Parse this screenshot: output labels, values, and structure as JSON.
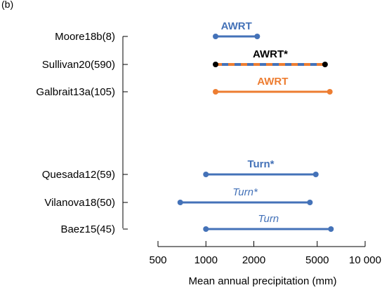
{
  "chart_data": {
    "type": "range",
    "panel_label": "(b)",
    "xlabel": "Mean annual precipitation (mm)",
    "x_scale": "log",
    "xlim": [
      500,
      10000
    ],
    "x_ticks": [
      {
        "value": 500,
        "label": "500"
      },
      {
        "value": 1000,
        "label": "1000"
      },
      {
        "value": 2000,
        "label": "2000"
      },
      {
        "value": 5000,
        "label": "5000"
      },
      {
        "value": 10000,
        "label": "10 000"
      }
    ],
    "colors": {
      "blue": "#4472b8",
      "orange": "#ed7d31",
      "black": "#000000"
    },
    "rows": [
      {
        "study": "Moore18b(8)",
        "min": 1150,
        "max": 2100,
        "label": "AWRT",
        "style": "blue",
        "label_bold": true,
        "label_italic": false
      },
      {
        "study": "Sullivan20(590)",
        "min": 1150,
        "max": 5600,
        "label": "AWRT*",
        "style": "blue-orange-dashed",
        "label_bold": true,
        "label_italic": false
      },
      {
        "study": "Galbrait13a(105)",
        "min": 1150,
        "max": 6000,
        "label": "AWRT",
        "style": "orange",
        "label_bold": true,
        "label_italic": false
      },
      {
        "study": "Quesada12(59)",
        "min": 1000,
        "max": 4900,
        "label": "Turn*",
        "style": "blue",
        "label_bold": true,
        "label_italic": false
      },
      {
        "study": "Vilanova18(50)",
        "min": 690,
        "max": 4500,
        "label": "Turn*",
        "style": "blue",
        "label_bold": false,
        "label_italic": true
      },
      {
        "study": "Baez15(45)",
        "min": 1000,
        "max": 6100,
        "label": "Turn",
        "style": "blue",
        "label_bold": false,
        "label_italic": true
      }
    ]
  }
}
